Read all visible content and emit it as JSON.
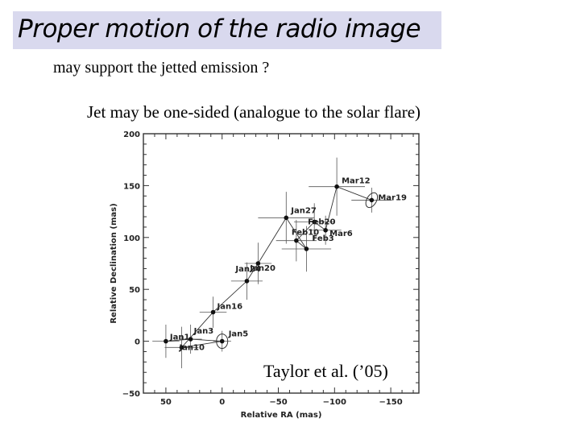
{
  "slide": {
    "title": "Proper motion of the radio image",
    "line1": "may support the jetted emission ?",
    "line2": "Jet may be one-sided (analogue to the solar flare)",
    "citation": "Taylor et al. (’05)"
  },
  "chart_data": {
    "type": "scatter",
    "xlabel": "Relative RA (mas)",
    "ylabel": "Relative Declination (mas)",
    "xlim": [
      70,
      -175
    ],
    "ylim": [
      -50,
      200
    ],
    "xticks": [
      50,
      0,
      -50,
      -100,
      -150
    ],
    "yticks": [
      -50,
      0,
      50,
      100,
      150,
      200
    ],
    "x_reversed": true,
    "grid": false,
    "points": [
      {
        "label": "Jan5",
        "x": 0,
        "y": 0,
        "xerr": 8,
        "yerr": 10
      },
      {
        "label": "Jan3",
        "x": 28,
        "y": 2,
        "xerr": 10,
        "yerr": 14
      },
      {
        "label": "Jan10",
        "x": 36,
        "y": -6,
        "xerr": 15,
        "yerr": 20
      },
      {
        "label": "Jan1",
        "x": 50,
        "y": 0,
        "xerr": 12,
        "yerr": 16
      },
      {
        "label": "Jan16",
        "x": 8,
        "y": 28,
        "xerr": 12,
        "yerr": 15
      },
      {
        "label": "Jan20",
        "x": -22,
        "y": 58,
        "xerr": 14,
        "yerr": 18
      },
      {
        "label": "Jan24",
        "x": -32,
        "y": 75,
        "xerr": 12,
        "yerr": 20
      },
      {
        "label": "Jan27",
        "x": -57,
        "y": 119,
        "xerr": 25,
        "yerr": 25
      },
      {
        "label": "Feb3",
        "x": -75,
        "y": 89,
        "xerr": 22,
        "yerr": 22
      },
      {
        "label": "Feb10",
        "x": -66,
        "y": 97,
        "xerr": 18,
        "yerr": 20
      },
      {
        "label": "Feb20",
        "x": -82,
        "y": 115,
        "xerr": 18,
        "yerr": 18
      },
      {
        "label": "Mar6",
        "x": -92,
        "y": 107,
        "xerr": 14,
        "yerr": 14
      },
      {
        "label": "Mar12",
        "x": -102,
        "y": 149,
        "xerr": 25,
        "yerr": 28
      },
      {
        "label": "Mar19",
        "x": -133,
        "y": 136,
        "xerr": 18,
        "yerr": 12
      }
    ],
    "track_order": [
      "Jan1",
      "Jan3",
      "Jan5",
      "Jan10",
      "Jan16",
      "Jan20",
      "Jan24",
      "Jan27",
      "Feb3",
      "Feb10",
      "Feb20",
      "Mar6",
      "Mar12",
      "Mar19"
    ]
  }
}
